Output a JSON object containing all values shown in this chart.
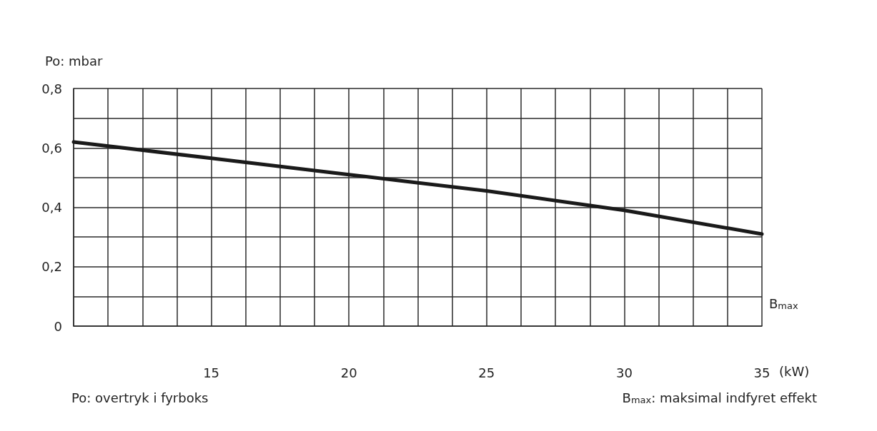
{
  "chart_data": {
    "type": "line",
    "xlabel": "B$_{max}$",
    "ylabel": "Po: mbar",
    "x": [
      10,
      15,
      20,
      25,
      30,
      35
    ],
    "series": [
      {
        "color": "#1a1a1a",
        "values": [
          0.62,
          0.565,
          0.51,
          0.455,
          0.39,
          0.31
        ]
      }
    ],
    "xlim": [
      10,
      35
    ],
    "xticks": [
      {
        "value": 10,
        "label": null
      },
      {
        "value": 11.25,
        "label": null
      },
      {
        "value": 12.5,
        "label": null
      },
      {
        "value": 13.75,
        "label": null
      },
      15,
      {
        "value": 16.25,
        "label": null
      },
      {
        "value": 17.5,
        "label": null
      },
      {
        "value": 18.75,
        "label": null
      },
      20,
      {
        "value": 21.25,
        "label": null
      },
      {
        "value": 22.5,
        "label": null
      },
      {
        "value": 23.75,
        "label": null
      },
      25,
      {
        "value": 26.25,
        "label": null
      },
      {
        "value": 27.5,
        "label": null
      },
      {
        "value": 28.75,
        "label": null
      },
      30,
      {
        "value": 31.25,
        "label": null
      },
      {
        "value": 32.5,
        "label": null
      },
      {
        "value": 33.75,
        "label": null
      },
      35
    ],
    "ylim": [
      0,
      0.8
    ],
    "yticks": [
      0,
      {
        "value": 0.1,
        "label": null
      },
      {
        "value": 0.2,
        "label": "0,2"
      },
      {
        "value": 0.3,
        "label": null
      },
      {
        "value": 0.4,
        "label": "0,4"
      },
      {
        "value": 0.5,
        "label": null
      },
      {
        "value": 0.6,
        "label": "0,6"
      },
      {
        "value": 0.7,
        "label": null
      },
      {
        "value": 0.8,
        "label": "0,8"
      }
    ],
    "grid": true,
    "marker": "none",
    "line_style": "solid",
    "annotations": [
      "Po: overtryk i fyrboks",
      "B$_{max}$: maksimal indfyret effekt",
      "(kW)"
    ]
  }
}
